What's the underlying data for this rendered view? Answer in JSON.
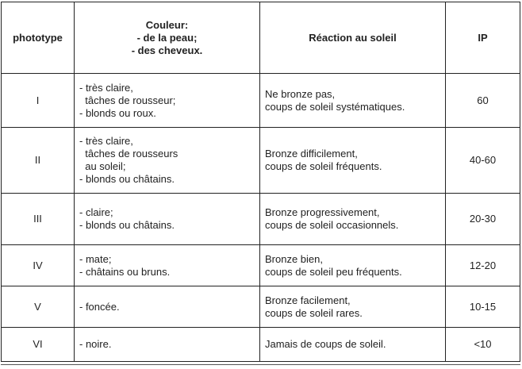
{
  "headers": [
    "phototype",
    "Couleur:\n- de la peau;\n- des cheveux.",
    "Réaction au soleil",
    "IP"
  ],
  "rows": [
    {
      "phototype": "I",
      "couleur": "- très claire,\n  tâches de rousseur;\n- blonds ou roux.",
      "reaction": "Ne bronze pas,\ncoups de soleil systématiques.",
      "ip": "60"
    },
    {
      "phototype": "II",
      "couleur": "- très claire,\n  tâches de rousseurs\n  au soleil;\n- blonds ou châtains.",
      "reaction": "Bronze difficilement,\ncoups de soleil fréquents.",
      "ip": "40-60"
    },
    {
      "phototype": "III",
      "couleur": "- claire;\n- blonds ou châtains.",
      "reaction": "Bronze progressivement,\ncoups de soleil occasionnels.",
      "ip": "20-30"
    },
    {
      "phototype": "IV",
      "couleur": "- mate;\n- châtains ou bruns.",
      "reaction": "Bronze bien,\ncoups de soleil peu fréquents.",
      "ip": "12-20"
    },
    {
      "phototype": "V",
      "couleur": "- foncée.",
      "reaction": "Bronze facilement,\ncoups de soleil rares.",
      "ip": "10-15"
    },
    {
      "phototype": "VI",
      "couleur": "- noire.",
      "reaction": "Jamais de coups de soleil.",
      "ip": "<10"
    }
  ]
}
